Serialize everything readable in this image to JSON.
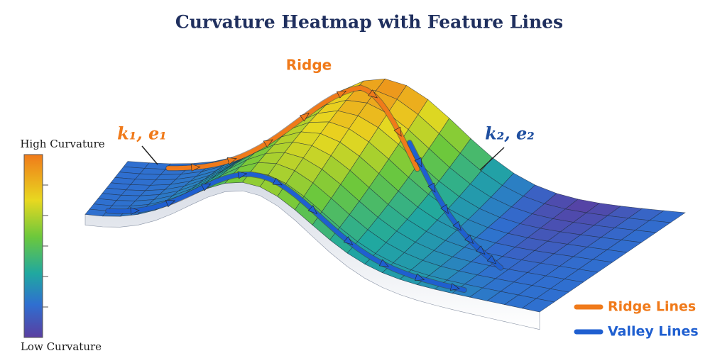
{
  "title": "Curvature Heatmap with Feature Lines",
  "annotations": {
    "ridge": "Ridge",
    "k1_e1": "k₁, e₁",
    "k2_e2": "k₂, e₂"
  },
  "colorbar": {
    "high": "High Curvature",
    "low": "Low Curvature"
  },
  "legend": [
    {
      "label": "Ridge Lines",
      "color": "#f07a1a"
    },
    {
      "label": "Valley Lines",
      "color": "#1f5fd0"
    }
  ]
}
